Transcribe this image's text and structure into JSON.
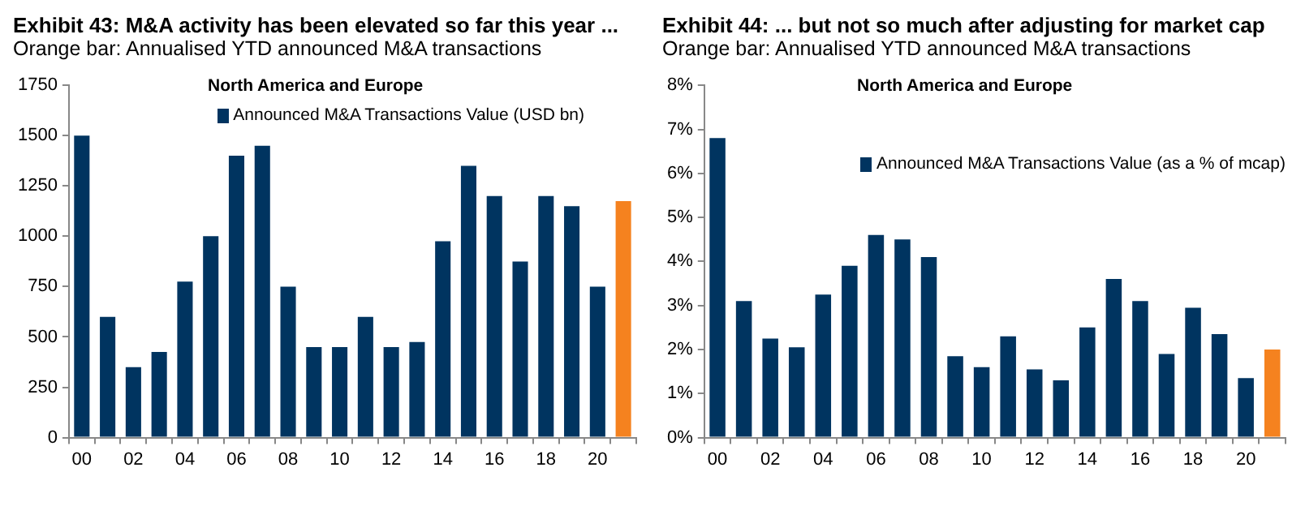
{
  "chart_data": [
    {
      "type": "bar",
      "title": "Exhibit 43: M&A activity has been elevated so far this year ...",
      "subtitle": "Orange bar: Annualised YTD announced M&A transactions",
      "annotations": [
        "North America and Europe"
      ],
      "categories": [
        "00",
        null,
        "02",
        null,
        "04",
        null,
        "06",
        null,
        "08",
        null,
        "10",
        null,
        "12",
        null,
        "14",
        null,
        "16",
        null,
        "18",
        null,
        "20",
        null
      ],
      "series": [
        {
          "name": "Announced M&A Transactions Value (USD bn)",
          "color": "#003460",
          "colors": [
            "#003460",
            "#003460",
            "#003460",
            "#003460",
            "#003460",
            "#003460",
            "#003460",
            "#003460",
            "#003460",
            "#003460",
            "#003460",
            "#003460",
            "#003460",
            "#003460",
            "#003460",
            "#003460",
            "#003460",
            "#003460",
            "#003460",
            "#003460",
            "#003460",
            "#f5821f"
          ],
          "values": [
            1500,
            600,
            350,
            425,
            775,
            1000,
            1400,
            1450,
            750,
            450,
            450,
            600,
            450,
            475,
            975,
            1350,
            1200,
            875,
            1200,
            1150,
            750,
            1175
          ]
        }
      ],
      "ylim": [
        0,
        1750
      ],
      "yticks": [
        0,
        250,
        500,
        750,
        1000,
        1250,
        1500,
        1750
      ],
      "grid": false,
      "legend": "top"
    },
    {
      "type": "bar",
      "title": "Exhibit 44: ... but not so much after adjusting for market cap",
      "subtitle": "Orange bar: Annualised YTD announced M&A transactions",
      "annotations": [
        "North America and Europe"
      ],
      "categories": [
        "00",
        null,
        "02",
        null,
        "04",
        null,
        "06",
        null,
        "08",
        null,
        "10",
        null,
        "12",
        null,
        "14",
        null,
        "16",
        null,
        "18",
        null,
        "20",
        null
      ],
      "series": [
        {
          "name": "Announced M&A Transactions Value (as a % of mcap)",
          "color": "#003460",
          "colors": [
            "#003460",
            "#003460",
            "#003460",
            "#003460",
            "#003460",
            "#003460",
            "#003460",
            "#003460",
            "#003460",
            "#003460",
            "#003460",
            "#003460",
            "#003460",
            "#003460",
            "#003460",
            "#003460",
            "#003460",
            "#003460",
            "#003460",
            "#003460",
            "#003460",
            "#f5821f"
          ],
          "values": [
            6.8,
            3.1,
            2.25,
            2.05,
            3.25,
            3.9,
            4.6,
            4.5,
            4.1,
            1.85,
            1.6,
            2.3,
            1.55,
            1.3,
            2.5,
            3.6,
            3.1,
            1.9,
            2.95,
            2.35,
            1.35,
            2.0
          ]
        }
      ],
      "ylim": [
        0,
        8
      ],
      "yticks": [
        {
          "value": 0,
          "label": "0%"
        },
        {
          "value": 1,
          "label": "1%"
        },
        {
          "value": 2,
          "label": "2%"
        },
        {
          "value": 3,
          "label": "3%"
        },
        {
          "value": 4,
          "label": "4%"
        },
        {
          "value": 5,
          "label": "5%"
        },
        {
          "value": 6,
          "label": "6%"
        },
        {
          "value": 7,
          "label": "7%"
        },
        {
          "value": 8,
          "label": "8%"
        }
      ],
      "grid": false,
      "legend": "right"
    }
  ]
}
